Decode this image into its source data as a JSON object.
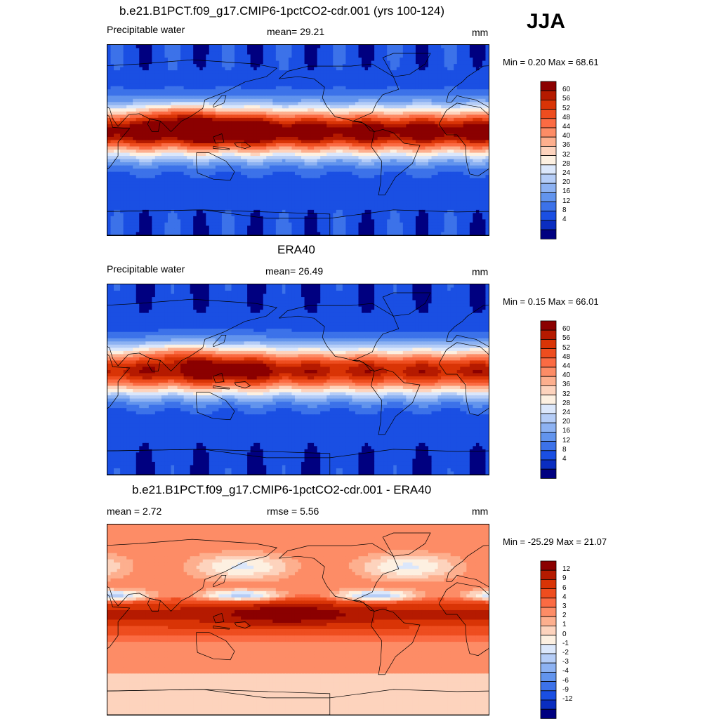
{
  "season": "JJA",
  "panels": [
    {
      "title": "b.e21.B1PCT.f09_g17.CMIP6-1pctCO2-cdr.001 (yrs 100-124)",
      "left": "Precipitable water",
      "center": "mean=  29.21",
      "units": "mm",
      "minmax": "Min =   0.20 Max =  68.61",
      "levels": [
        "60",
        "56",
        "52",
        "48",
        "44",
        "40",
        "36",
        "32",
        "28",
        "24",
        "20",
        "16",
        "12",
        "8",
        "4"
      ],
      "colors": [
        "#8b0000",
        "#b51a00",
        "#d93406",
        "#ee4d1f",
        "#fb6b43",
        "#fd8c66",
        "#fdaf8e",
        "#fdd3bd",
        "#fdf0e1",
        "#dbe7fb",
        "#b5cdf7",
        "#8db2f2",
        "#6294ed",
        "#3c72e9",
        "#1a4fe3",
        "#0a2dc0",
        "#000080"
      ],
      "mean_value": 29.21
    },
    {
      "title": "ERA40",
      "left": "Precipitable water",
      "center": "mean=  26.49",
      "units": "mm",
      "minmax": "Min =   0.15 Max =  66.01",
      "levels": [
        "60",
        "56",
        "52",
        "48",
        "44",
        "40",
        "36",
        "32",
        "28",
        "24",
        "20",
        "16",
        "12",
        "8",
        "4"
      ],
      "colors": [
        "#8b0000",
        "#b51a00",
        "#d93406",
        "#ee4d1f",
        "#fb6b43",
        "#fd8c66",
        "#fdaf8e",
        "#fdd3bd",
        "#fdf0e1",
        "#dbe7fb",
        "#b5cdf7",
        "#8db2f2",
        "#6294ed",
        "#3c72e9",
        "#1a4fe3",
        "#0a2dc0",
        "#000080"
      ],
      "mean_value": 26.49
    },
    {
      "title": "b.e21.B1PCT.f09_g17.CMIP6-1pctCO2-cdr.001 - ERA40",
      "left": "mean =   2.72",
      "center": "rmse =   5.56",
      "units": "mm",
      "minmax": "Min = -25.29 Max =  21.07",
      "levels": [
        "12",
        "9",
        "6",
        "4",
        "3",
        "2",
        "1",
        "0",
        "-1",
        "-2",
        "-3",
        "-4",
        "-6",
        "-9",
        "-12"
      ],
      "colors": [
        "#8b0000",
        "#b51a00",
        "#d93406",
        "#ee4d1f",
        "#fb6b43",
        "#fd8c66",
        "#fdaf8e",
        "#fdd3bd",
        "#fdf0e1",
        "#dbe7fb",
        "#b5cdf7",
        "#8db2f2",
        "#6294ed",
        "#3c72e9",
        "#1a4fe3",
        "#0a2dc0",
        "#000080"
      ],
      "mean_value": 2.72
    }
  ]
}
